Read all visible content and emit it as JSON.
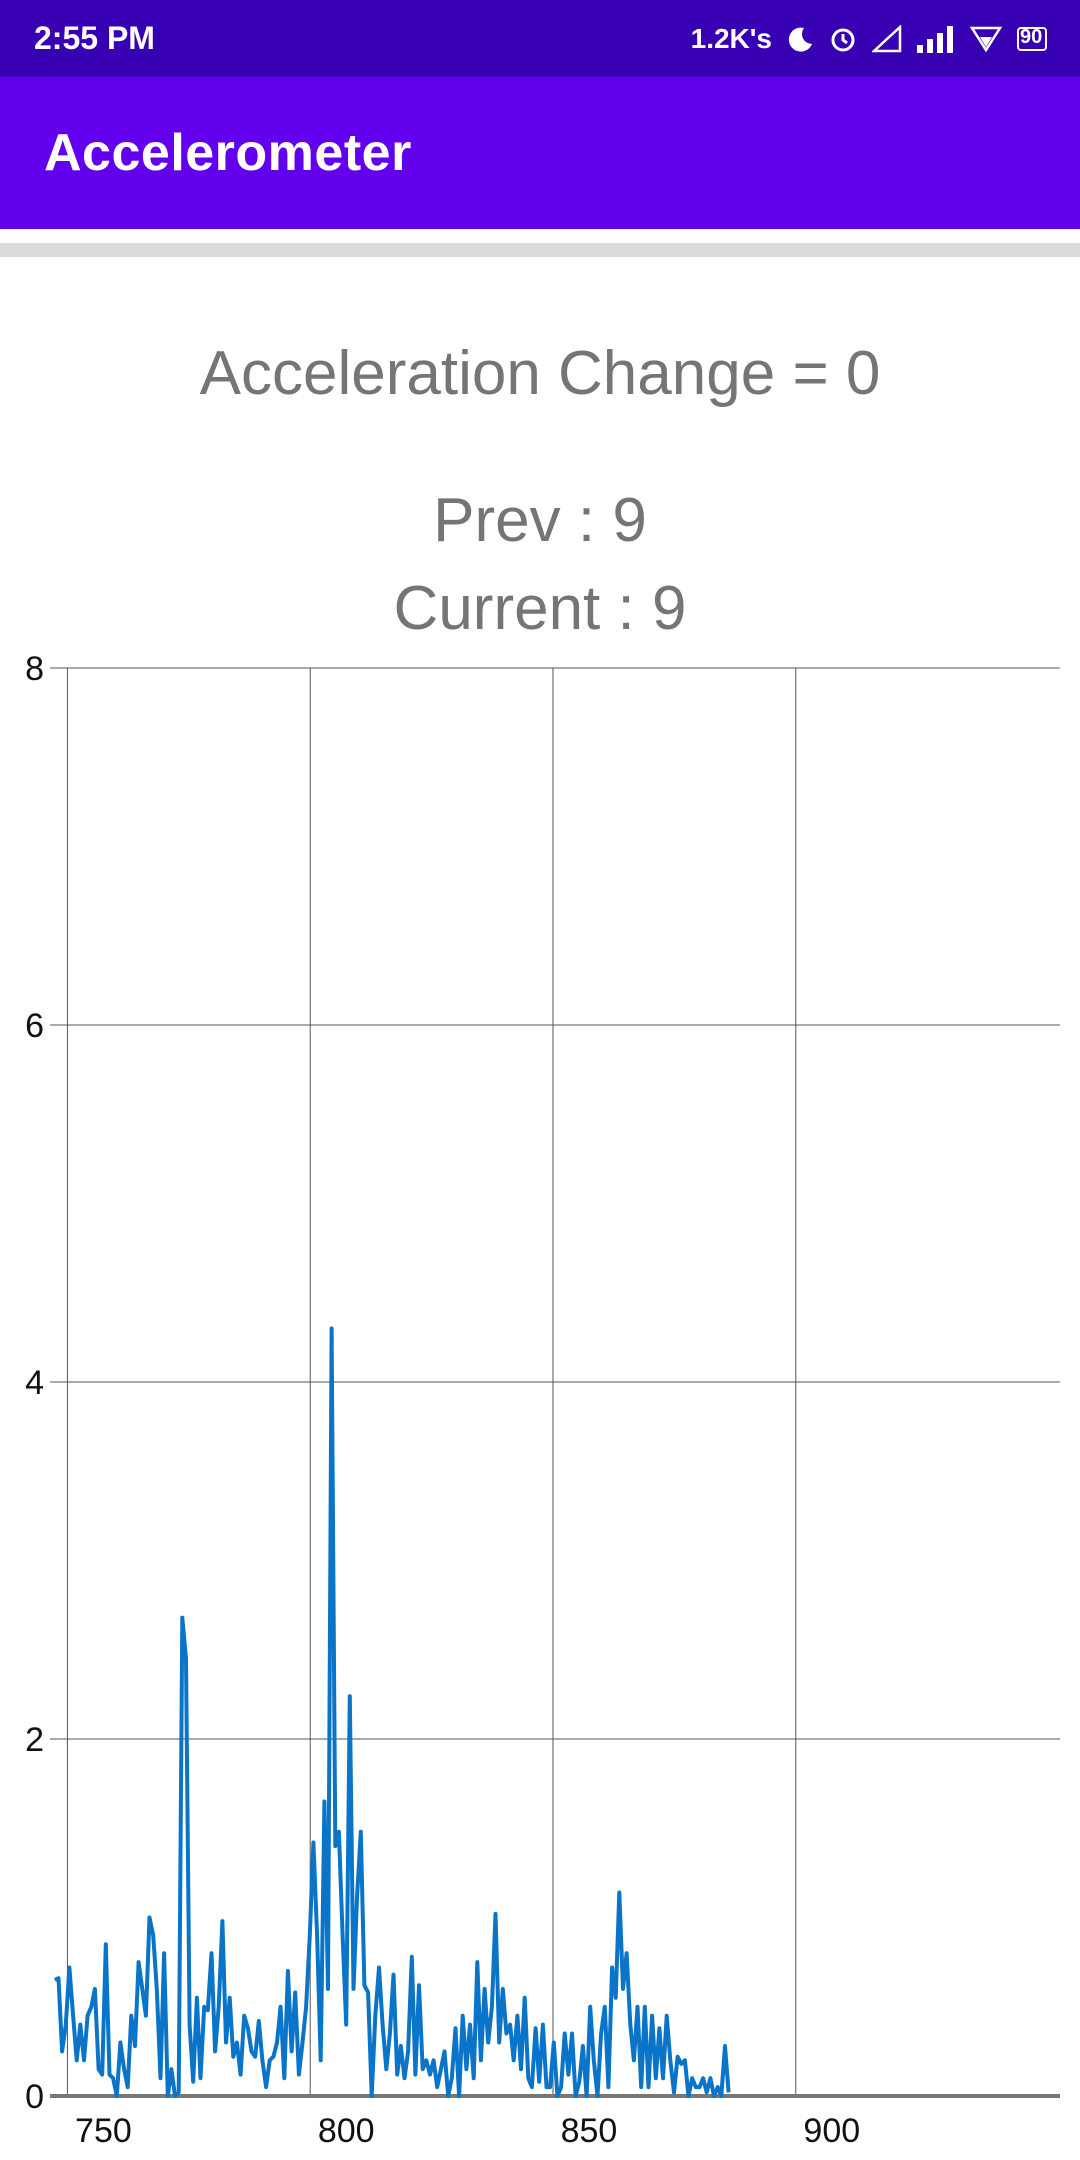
{
  "status_bar": {
    "time": "2:55 PM",
    "network_speed": "1.2K's",
    "battery": "90",
    "icons": [
      "moon-icon",
      "alarm-icon",
      "signal-empty-icon",
      "signal-bars-icon",
      "wifi-icon",
      "battery-icon"
    ]
  },
  "app_bar": {
    "title": "Accelerometer"
  },
  "readout": {
    "acceleration_change": "Acceleration Change = 0",
    "prev": "Prev : 9",
    "current": "Current : 9"
  },
  "colors": {
    "status_bar": "#3700b3",
    "app_bar": "#6200ee",
    "series": "#0a74c9",
    "readout_text": "#757575"
  },
  "chart_data": {
    "type": "line",
    "title": "",
    "xlabel": "",
    "ylabel": "",
    "xlim": [
      739,
      947
    ],
    "ylim": [
      0,
      8
    ],
    "x_ticks": [
      750,
      800,
      850,
      900
    ],
    "y_ticks": [
      0,
      2,
      4,
      6,
      8
    ],
    "x_gridlines": [
      750,
      800,
      850,
      900
    ],
    "grid": true,
    "legend": "none",
    "series": [
      {
        "x_start": 740,
        "x_step": 0.75,
        "y": [
          0.65,
          0.66,
          0.25,
          0.4,
          0.72,
          0.45,
          0.2,
          0.4,
          0.2,
          0.45,
          0.5,
          0.6,
          0.15,
          0.12,
          0.85,
          0.12,
          0.1,
          0.0,
          0.3,
          0.15,
          0.05,
          0.45,
          0.28,
          0.75,
          0.6,
          0.45,
          1.0,
          0.9,
          0.6,
          0.1,
          0.8,
          0.0,
          0.15,
          0.0,
          0.02,
          2.68,
          2.45,
          0.4,
          0.08,
          0.55,
          0.1,
          0.5,
          0.48,
          0.8,
          0.25,
          0.5,
          0.98,
          0.3,
          0.55,
          0.22,
          0.3,
          0.12,
          0.45,
          0.38,
          0.25,
          0.22,
          0.42,
          0.2,
          0.05,
          0.2,
          0.22,
          0.3,
          0.5,
          0.1,
          0.7,
          0.25,
          0.58,
          0.12,
          0.3,
          0.5,
          0.9,
          1.42,
          0.9,
          0.2,
          1.65,
          0.6,
          4.3,
          1.4,
          1.48,
          0.9,
          0.4,
          2.24,
          0.6,
          1.12,
          1.48,
          0.62,
          0.58,
          0.0,
          0.45,
          0.72,
          0.4,
          0.15,
          0.35,
          0.68,
          0.12,
          0.28,
          0.1,
          0.25,
          0.78,
          0.12,
          0.62,
          0.15,
          0.2,
          0.12,
          0.2,
          0.05,
          0.15,
          0.25,
          0.0,
          0.1,
          0.38,
          0.0,
          0.45,
          0.15,
          0.4,
          0.1,
          0.75,
          0.2,
          0.6,
          0.3,
          0.5,
          1.02,
          0.3,
          0.6,
          0.35,
          0.4,
          0.2,
          0.45,
          0.15,
          0.55,
          0.1,
          0.05,
          0.38,
          0.08,
          0.4,
          0.05,
          0.05,
          0.3,
          0.0,
          0.05,
          0.35,
          0.12,
          0.35,
          0.0,
          0.08,
          0.28,
          0.0,
          0.5,
          0.2,
          0.0,
          0.35,
          0.5,
          0.05,
          0.72,
          0.55,
          1.14,
          0.6,
          0.8,
          0.4,
          0.2,
          0.5,
          0.05,
          0.5,
          0.05,
          0.45,
          0.1,
          0.38,
          0.1,
          0.45,
          0.2,
          0.02,
          0.22,
          0.18,
          0.2,
          0.0,
          0.1,
          0.05,
          0.05,
          0.1,
          0.02,
          0.1,
          0.0,
          0.05,
          0.0,
          0.28,
          0.02
        ]
      }
    ]
  }
}
